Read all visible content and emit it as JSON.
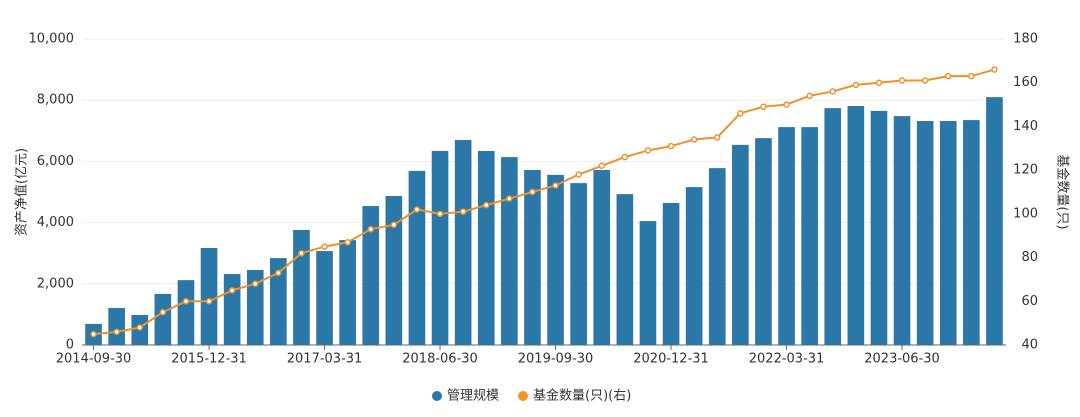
{
  "chart_data": {
    "type": "bar-line",
    "categories": [
      "2014-09-30",
      null,
      null,
      null,
      null,
      "2015-12-31",
      null,
      null,
      null,
      null,
      "2017-03-31",
      null,
      null,
      null,
      null,
      "2018-06-30",
      null,
      null,
      null,
      null,
      "2019-09-30",
      null,
      null,
      null,
      null,
      "2020-12-31",
      null,
      null,
      null,
      null,
      "2022-03-31",
      null,
      null,
      null,
      null,
      "2023-06-30",
      null,
      null,
      null,
      null
    ],
    "y_label": "资产净值(亿元)",
    "y2_label": "基金数量(只)",
    "series": [
      {
        "name": "管理规模",
        "type": "bar",
        "color": "#2b77a8",
        "values": [
          690,
          1210,
          980,
          1670,
          2120,
          3170,
          2320,
          2450,
          2840,
          3760,
          3070,
          3430,
          4540,
          4870,
          5690,
          6340,
          6700,
          6340,
          6140,
          5720,
          5560,
          5290,
          5720,
          4930,
          4050,
          4640,
          5160,
          5780,
          6540,
          6760,
          7120,
          7120,
          7740,
          7810,
          7650,
          7480,
          7320,
          7320,
          7350,
          8100
        ]
      },
      {
        "name": "基金数量(只)(右)",
        "type": "line",
        "axis": "y2",
        "color": "#f0922c",
        "values": [
          45,
          46,
          48,
          55,
          60,
          60,
          65,
          68,
          73,
          82,
          85,
          87,
          93,
          95,
          102,
          100,
          101,
          104,
          107,
          110,
          113,
          118,
          122,
          126,
          129,
          131,
          134,
          135,
          146,
          149,
          150,
          154,
          156,
          159,
          160,
          161,
          161,
          163,
          163,
          166
        ]
      }
    ],
    "ylim": [
      0,
      10000
    ],
    "yticks": [
      0,
      {
        "value": 2000,
        "label": "2,000"
      },
      {
        "value": 4000,
        "label": "4,000"
      },
      {
        "value": 6000,
        "label": "6,000"
      },
      {
        "value": 8000,
        "label": "8,000"
      },
      {
        "value": 10000,
        "label": "10,000"
      }
    ],
    "y2lim": [
      40,
      180
    ],
    "y2ticks": [
      40,
      60,
      80,
      100,
      120,
      140,
      160,
      180
    ],
    "grid": true,
    "legend": "bottom"
  }
}
